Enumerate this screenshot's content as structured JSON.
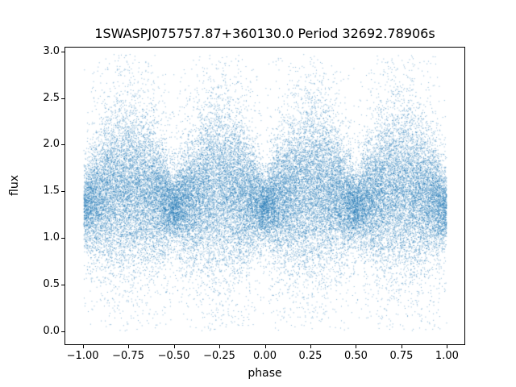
{
  "chart_data": {
    "type": "scatter",
    "title": "1SWASPJ075757.87+360130.0 Period 32692.78906s",
    "xlabel": "phase",
    "ylabel": "flux",
    "xlim": [
      -1.1,
      1.1
    ],
    "ylim": [
      -0.15,
      3.05
    ],
    "x_ticks": [
      -1.0,
      -0.75,
      -0.5,
      -0.25,
      0.0,
      0.25,
      0.5,
      0.75,
      1.0
    ],
    "x_tick_labels": [
      "−1.00",
      "−0.75",
      "−0.50",
      "−0.25",
      "0.00",
      "0.25",
      "0.50",
      "0.75",
      "1.00"
    ],
    "y_ticks": [
      0.0,
      0.5,
      1.0,
      1.5,
      2.0,
      2.5,
      3.0
    ],
    "y_tick_labels": [
      "0.0",
      "0.5",
      "1.0",
      "1.5",
      "2.0",
      "2.5",
      "3.0"
    ],
    "grid": false,
    "legend": null,
    "marker_color": "#1f77b4",
    "marker_alpha": 0.55,
    "marker_size_px": 1,
    "series_model": {
      "description": "Phase-folded SuperWASP light curve scatter of ~45000 points. Flux cloud centered near 1.4-1.5 with four broad humps (maximum spread, envelope ~0.3 to ~2.35) centered near phase ±0.25 and ±0.75, and narrow waists (dense band ~0.9 to ~1.9) at phase 0, ±0.5 and ±1. Sparse outliers span flux ~0.05 to ~2.9 across all phases.",
      "n_points": 45000,
      "phase_range": [
        -1.0,
        1.0
      ],
      "mean_base": 1.32,
      "mean_mod_amp": 0.22,
      "sigma_base": 0.17,
      "sigma_mod_amp": 0.27,
      "tail_fraction": 0.15,
      "tail_sigma_scale": 2.2,
      "outlier_fraction": 0.012,
      "outlier_flux_range": [
        0.05,
        2.9
      ],
      "flux_clip": [
        0.0,
        2.98
      ],
      "seed": 42
    }
  }
}
